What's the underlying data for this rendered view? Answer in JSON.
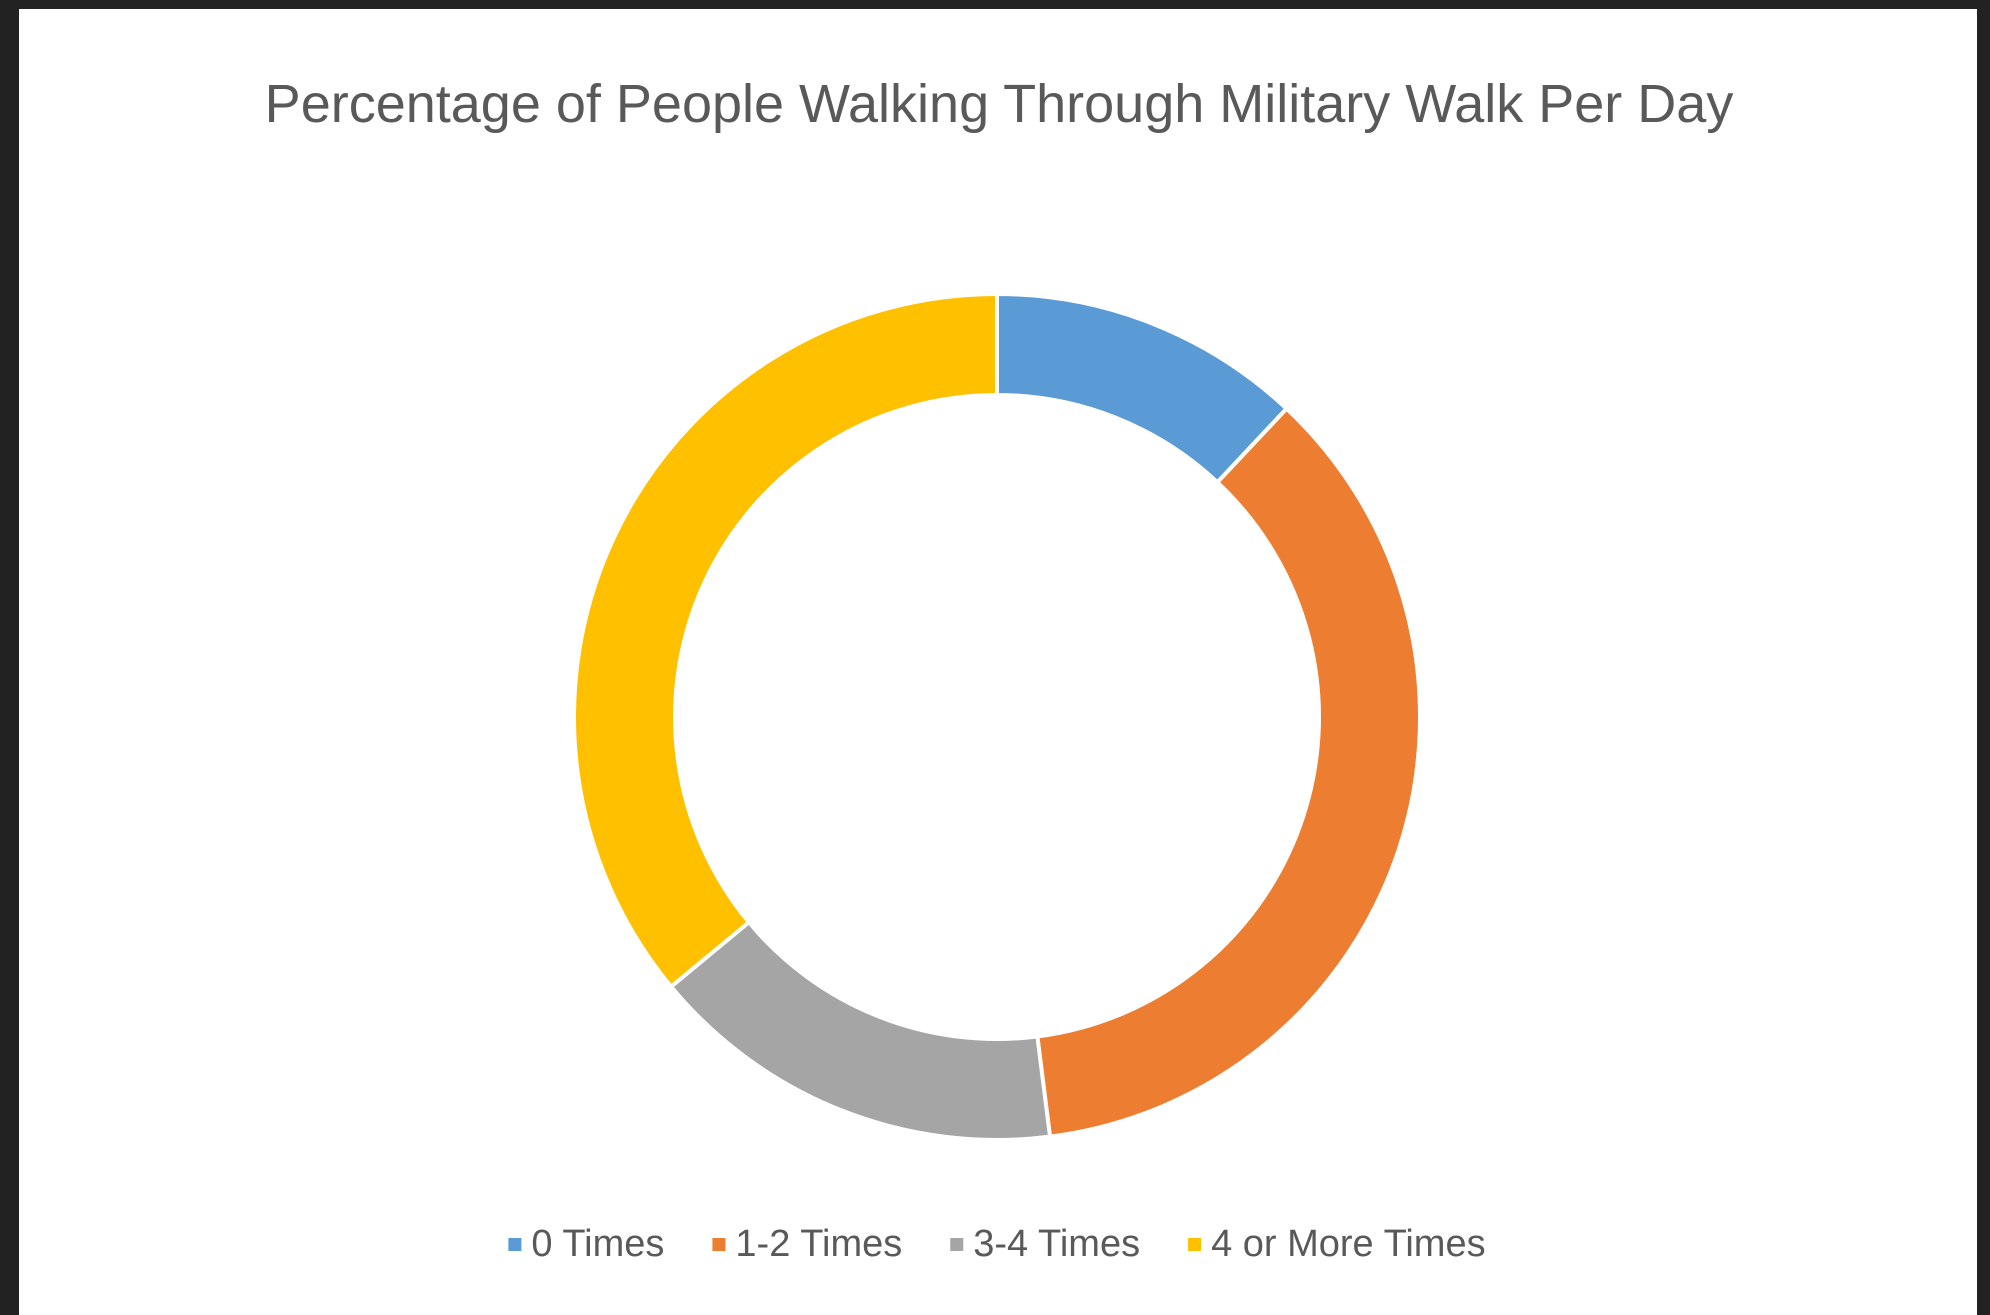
{
  "chart_data": {
    "type": "donut",
    "title": "Percentage of People Walking Through Military Walk Per Day",
    "categories": [
      "0 Times",
      "1-2 Times",
      "3-4 Times",
      "4 or More Times"
    ],
    "values": [
      12,
      36,
      16,
      36
    ],
    "colors": [
      "#5b9bd5",
      "#ed7d31",
      "#a5a5a5",
      "#ffc000"
    ],
    "legend": "bottom"
  }
}
